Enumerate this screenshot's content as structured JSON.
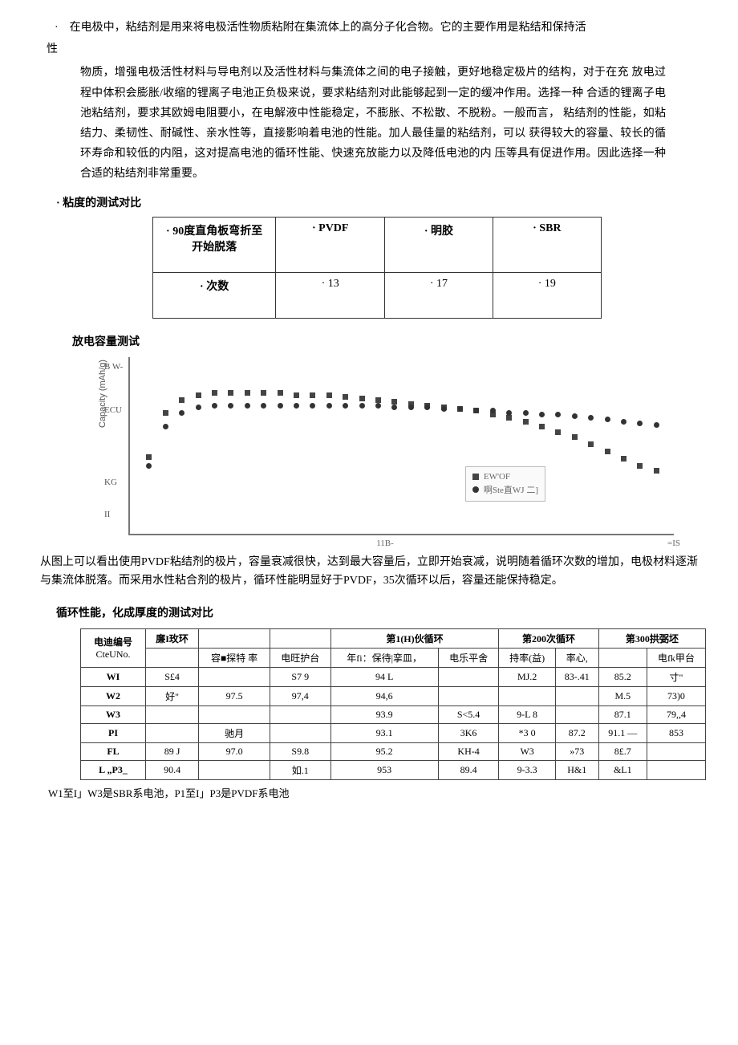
{
  "intro": {
    "line1_prefix": "·",
    "line1": "在电极中，粘结剂是用来将电极活性物质粘附在集流体上的高分子化合物。它的主要作用是粘结和保持活",
    "line2": "性",
    "block": "物质，增强电极活性材料与导电剂以及活性材料与集流体之间的电子接触，更好地稳定极片的结构，对于在充 放电过程中体积会膨胀/收缩的锂离子电池正负极来说，要求粘结剂对此能够起到一定的缓冲作用。选择一种 合适的锂离子电池粘结剂，要求其欧姆电阻要小，在电解液中性能稳定，不膨胀、不松散、不脱粉。一般而言， 粘结剂的性能，如粘结力、柔韧性、耐碱性、亲水性等，直接影响着电池的性能。加人最佳量的粘结剂，可以 获得较大的容量、较长的循环寿命和较低的内阻，这对提高电池的循环性能、快速充放能力以及降低电池的内 压等具有促进作用。因此选择一种合适的粘结剂非常重要。"
  },
  "section_viscosity": "· 粘度的测试对比",
  "comp_table": {
    "h1": "· 90度直角板弯折至开始脱落",
    "h2": "·  PVDF",
    "h3": "· 明胶",
    "h4": "· SBR",
    "r1": "· 次数",
    "c1": "· 13",
    "c2": "· 17",
    "c3": "· 19"
  },
  "section_discharge": "放电容量测试",
  "chart": {
    "ylabel": "Capacity (mAh/g)",
    "yticks": [
      "B W-",
      "ECU",
      "KG",
      "II"
    ],
    "xlabel": "11B-",
    "xright": "=IS",
    "legend1": "EW'OF",
    "legend2": "啊Ste直WJ 二]",
    "series_sq_color": "#444444",
    "series_ci_color": "#333333",
    "bg": "#ffffff",
    "axis_color": "#777777",
    "series_sq": [
      [
        3,
        55
      ],
      [
        6,
        30
      ],
      [
        9,
        23
      ],
      [
        12,
        20
      ],
      [
        15,
        19
      ],
      [
        18,
        19
      ],
      [
        21,
        19
      ],
      [
        24,
        19
      ],
      [
        27,
        19
      ],
      [
        30,
        20
      ],
      [
        33,
        20
      ],
      [
        36,
        20
      ],
      [
        39,
        21
      ],
      [
        42,
        22
      ],
      [
        45,
        23
      ],
      [
        48,
        24
      ],
      [
        51,
        25
      ],
      [
        54,
        26
      ],
      [
        57,
        27
      ],
      [
        60,
        28
      ],
      [
        63,
        29
      ],
      [
        66,
        31
      ],
      [
        69,
        33
      ],
      [
        72,
        35
      ],
      [
        75,
        38
      ],
      [
        78,
        41
      ],
      [
        81,
        44
      ],
      [
        84,
        48
      ],
      [
        87,
        52
      ],
      [
        90,
        56
      ],
      [
        93,
        60
      ],
      [
        96,
        63
      ]
    ],
    "series_ci": [
      [
        3,
        60
      ],
      [
        6,
        38
      ],
      [
        9,
        30
      ],
      [
        12,
        27
      ],
      [
        15,
        26
      ],
      [
        18,
        26
      ],
      [
        21,
        26
      ],
      [
        24,
        26
      ],
      [
        27,
        26
      ],
      [
        30,
        26
      ],
      [
        33,
        26
      ],
      [
        36,
        26
      ],
      [
        39,
        26
      ],
      [
        42,
        26
      ],
      [
        45,
        26
      ],
      [
        48,
        27
      ],
      [
        51,
        27
      ],
      [
        54,
        27
      ],
      [
        57,
        28
      ],
      [
        60,
        28
      ],
      [
        63,
        29
      ],
      [
        66,
        29
      ],
      [
        69,
        30
      ],
      [
        72,
        30
      ],
      [
        75,
        31
      ],
      [
        78,
        31
      ],
      [
        81,
        32
      ],
      [
        84,
        33
      ],
      [
        87,
        34
      ],
      [
        90,
        35
      ],
      [
        93,
        36
      ],
      [
        96,
        37
      ]
    ]
  },
  "chart_analysis": "从图上可以看出使用PVDF粘结剂的极片，容量衰减很快，达到最大容量后，立即开始衰减，说明随着循环次数的增加，电极材料逐渐与集流体脱落。而采用水性粘合剂的极片，循环性能明显好于PVDF，35次循环以后，容量还能保持稳定。",
  "section_cycle": "循环性能，化成厚度的测试对比",
  "big_table": {
    "h_cell": "电迪编号",
    "h_cell2": "CteUNo.",
    "g1": "廉I玫环",
    "g2": "",
    "g3": "第1(H)伙循环",
    "g4": "第200次循环",
    "g5": "第300拱弼坯",
    "sh_cap": "容■探特 率",
    "sh_plat": "电旺护台",
    "sh_y1": "年fi：保待|挛皿，",
    "sh_y2": "电乐平舍",
    "sh_y3": "持率(益)",
    "sh_y4": "率心,",
    "sh_y5": "",
    "sh_y6": "电fk甲台",
    "rows": [
      [
        "WI",
        "S£4",
        "",
        "S7 9",
        "94 L",
        "",
        "MJ.2",
        "83-.41",
        "85.2",
        "寸\""
      ],
      [
        "W2",
        "好\"",
        "97.5",
        "97,4",
        "94,6",
        "",
        "",
        "",
        "M.5",
        "73)0"
      ],
      [
        "W3",
        "",
        "",
        "",
        "93.9",
        "S<5.4",
        "9-L 8",
        "",
        "87.1",
        "79,,4"
      ],
      [
        "PI",
        "",
        "驰月",
        "",
        "93.1",
        "3K6",
        "*3 0",
        "87.2",
        "91.1 —",
        "853"
      ],
      [
        "FL",
        "89 J",
        "97.0",
        "S9.8",
        "95.2",
        "KH-4",
        "W3",
        "»73",
        "8£.7",
        ""
      ],
      [
        "L „P3_",
        "90.4",
        "",
        "如.1",
        "953",
        "89.4",
        "9-3.3",
        "H&1",
        "&L1",
        ""
      ]
    ]
  },
  "foot_note": "W1至I」W3是SBR系电池，P1至I」P3是PVDF系电池"
}
